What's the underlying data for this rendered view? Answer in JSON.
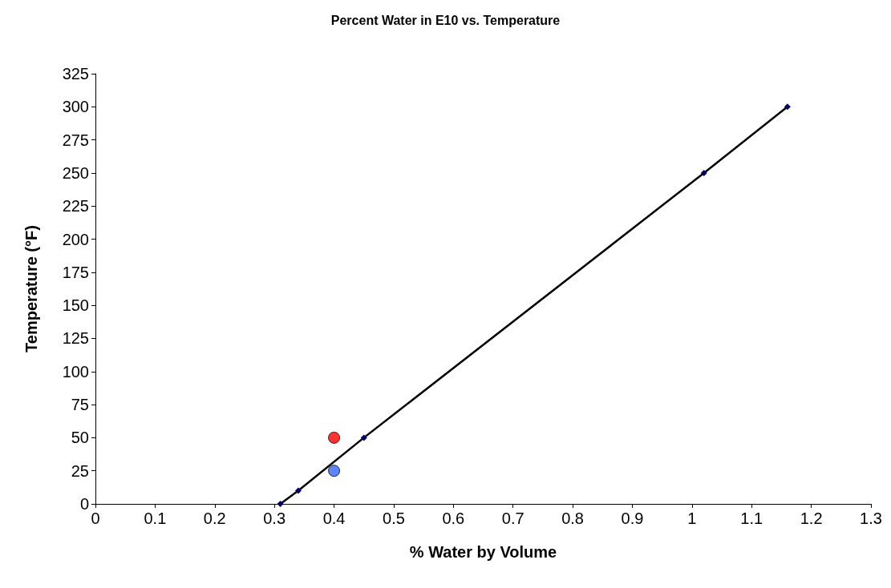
{
  "chart_data": {
    "type": "line",
    "title": "Percent Water in E10 vs. Temperature",
    "xlabel": "% Water by Volume",
    "ylabel": "Temperature (°F)",
    "xlim": [
      0,
      1.3
    ],
    "xticks": [
      0,
      0.1,
      0.2,
      0.3,
      0.4,
      0.5,
      0.6,
      0.7,
      0.8,
      0.9,
      1,
      1.1,
      1.2,
      1.3
    ],
    "ylim": [
      0,
      325
    ],
    "yticks": [
      0,
      25,
      50,
      75,
      100,
      125,
      150,
      175,
      200,
      225,
      250,
      275,
      300,
      325
    ],
    "grid": false,
    "series": [
      {
        "color": "#000000",
        "marker": "diamond",
        "x": [
          0.31,
          0.34,
          0.45,
          1.02,
          1.16
        ],
        "values": [
          0,
          10,
          50,
          250,
          300
        ]
      },
      {
        "type": "scatter",
        "color": "#ff0000",
        "marker": "circle",
        "x": [
          0.4
        ],
        "values": [
          50
        ]
      },
      {
        "type": "scatter",
        "color": "#3366ff",
        "marker": "circle",
        "x": [
          0.4
        ],
        "values": [
          25
        ]
      }
    ]
  }
}
